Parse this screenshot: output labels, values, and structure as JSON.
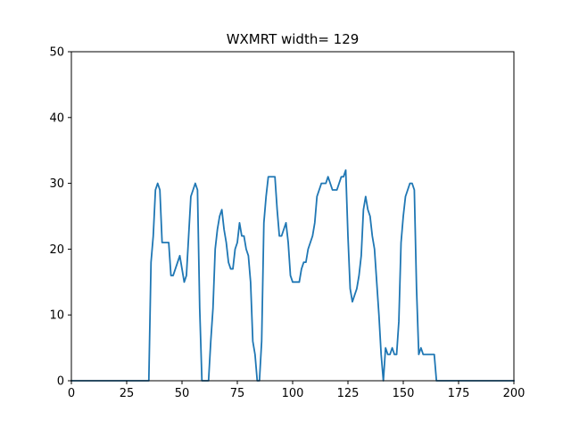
{
  "chart_data": {
    "type": "line",
    "title": "WXMRT width= 129",
    "xlabel": "",
    "ylabel": "",
    "xlim": [
      0,
      200
    ],
    "ylim": [
      0,
      50
    ],
    "grid": false,
    "legend": "none",
    "xticks": [
      0,
      25,
      50,
      75,
      100,
      125,
      150,
      175,
      200
    ],
    "yticks": [
      0,
      10,
      20,
      30,
      40,
      50
    ],
    "series": [
      {
        "color": "#1f77b4",
        "points": [
          [
            0,
            0
          ],
          [
            35,
            0
          ],
          [
            36,
            18
          ],
          [
            37,
            22
          ],
          [
            38,
            29
          ],
          [
            39,
            30
          ],
          [
            40,
            29
          ],
          [
            41,
            21
          ],
          [
            42,
            21
          ],
          [
            43,
            21
          ],
          [
            44,
            21
          ],
          [
            45,
            16
          ],
          [
            46,
            16
          ],
          [
            47,
            17
          ],
          [
            48,
            18
          ],
          [
            49,
            19
          ],
          [
            50,
            17
          ],
          [
            51,
            15
          ],
          [
            52,
            16
          ],
          [
            53,
            22
          ],
          [
            54,
            28
          ],
          [
            55,
            29
          ],
          [
            56,
            30
          ],
          [
            57,
            29
          ],
          [
            58,
            11
          ],
          [
            59,
            0
          ],
          [
            60,
            0
          ],
          [
            61,
            0
          ],
          [
            62,
            0
          ],
          [
            63,
            6
          ],
          [
            64,
            11
          ],
          [
            65,
            20
          ],
          [
            66,
            23
          ],
          [
            67,
            25
          ],
          [
            68,
            26
          ],
          [
            69,
            23
          ],
          [
            70,
            21
          ],
          [
            71,
            18
          ],
          [
            72,
            17
          ],
          [
            73,
            17
          ],
          [
            74,
            20
          ],
          [
            75,
            21
          ],
          [
            76,
            24
          ],
          [
            77,
            22
          ],
          [
            78,
            22
          ],
          [
            79,
            20
          ],
          [
            80,
            19
          ],
          [
            81,
            15
          ],
          [
            82,
            6
          ],
          [
            83,
            4
          ],
          [
            84,
            0
          ],
          [
            85,
            0
          ],
          [
            86,
            6
          ],
          [
            87,
            24
          ],
          [
            88,
            28
          ],
          [
            89,
            31
          ],
          [
            90,
            31
          ],
          [
            91,
            31
          ],
          [
            92,
            31
          ],
          [
            93,
            26
          ],
          [
            94,
            22
          ],
          [
            95,
            22
          ],
          [
            96,
            23
          ],
          [
            97,
            24
          ],
          [
            98,
            21
          ],
          [
            99,
            16
          ],
          [
            100,
            15
          ],
          [
            101,
            15
          ],
          [
            102,
            15
          ],
          [
            103,
            15
          ],
          [
            104,
            17
          ],
          [
            105,
            18
          ],
          [
            106,
            18
          ],
          [
            107,
            20
          ],
          [
            108,
            21
          ],
          [
            109,
            22
          ],
          [
            110,
            24
          ],
          [
            111,
            28
          ],
          [
            112,
            29
          ],
          [
            113,
            30
          ],
          [
            114,
            30
          ],
          [
            115,
            30
          ],
          [
            116,
            31
          ],
          [
            117,
            30
          ],
          [
            118,
            29
          ],
          [
            119,
            29
          ],
          [
            120,
            29
          ],
          [
            121,
            30
          ],
          [
            122,
            31
          ],
          [
            123,
            31
          ],
          [
            124,
            32
          ],
          [
            125,
            22
          ],
          [
            126,
            14
          ],
          [
            127,
            12
          ],
          [
            128,
            13
          ],
          [
            129,
            14
          ],
          [
            130,
            16
          ],
          [
            131,
            19
          ],
          [
            132,
            26
          ],
          [
            133,
            28
          ],
          [
            134,
            26
          ],
          [
            135,
            25
          ],
          [
            136,
            22
          ],
          [
            137,
            20
          ],
          [
            138,
            15
          ],
          [
            139,
            10
          ],
          [
            140,
            4
          ],
          [
            141,
            0
          ],
          [
            142,
            5
          ],
          [
            143,
            4
          ],
          [
            144,
            4
          ],
          [
            145,
            5
          ],
          [
            146,
            4
          ],
          [
            147,
            4
          ],
          [
            148,
            9
          ],
          [
            149,
            21
          ],
          [
            150,
            25
          ],
          [
            151,
            28
          ],
          [
            152,
            29
          ],
          [
            153,
            30
          ],
          [
            154,
            30
          ],
          [
            155,
            29
          ],
          [
            156,
            14
          ],
          [
            157,
            4
          ],
          [
            158,
            5
          ],
          [
            159,
            4
          ],
          [
            160,
            4
          ],
          [
            161,
            4
          ],
          [
            162,
            4
          ],
          [
            163,
            4
          ],
          [
            164,
            4
          ],
          [
            165,
            0
          ],
          [
            200,
            0
          ]
        ]
      }
    ]
  }
}
